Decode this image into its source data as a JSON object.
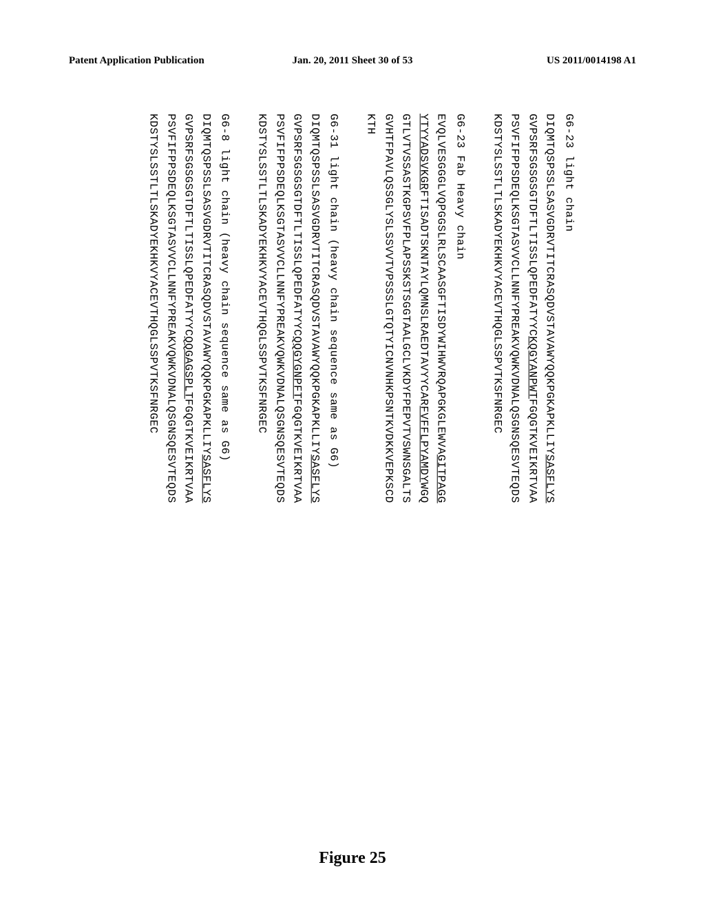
{
  "header": {
    "left": "Patent Application Publication",
    "center": "Jan. 20, 2011  Sheet 30 of 53",
    "right": "US 2011/0014198 A1"
  },
  "content": {
    "blocks": [
      {
        "title": "G6-23 light chain",
        "lines": [
          {
            "pre": "DIQMTQSPSSLSASVGDRVTITCRASQDVSTAVAWYQQKPGKAPKLLIY",
            "u": "SASFLYS",
            "post": ""
          },
          {
            "pre": "GVPSRFSGSGSGTDFTLTISSLQPEDFATYYC",
            "u": "KQGYANPWT",
            "post": "FGQGTKVEIKRTVAA"
          },
          {
            "pre": "PSVFIFPPSDEQLKSGTASVVCLLNNFYPREAKVQWKVDNALQSGNSQESVTEQDS",
            "u": "",
            "post": ""
          },
          {
            "pre": "KDSTYSLSSTLTLSKADYEKHKVYACEVTHQGLSSPVTKSFNRGEC",
            "u": "",
            "post": ""
          }
        ]
      },
      {
        "title": "G6-23 Fab Heavy chain",
        "lines": [
          {
            "pre": "EVQLVESGGGLVQPGGSLRLSCAASGFTISDYWIHWVRQAPGKGLEWVA",
            "u": "GITPAGG",
            "post": ""
          },
          {
            "pre": "",
            "u": "YTYYADSVKGR",
            "post": "FTISADTSKNTAYLQMNSLRAEDTAVYYCAR"
          },
          {
            "pre2": "",
            "u2": "FVFFLPYAMDY",
            "post2": "WGQ"
          },
          {
            "pre": "GTLVTVSSASTKGPSVFPLAPSSKSTSGGTAALGCLVKDYFPEPVTVSWNSGALTS",
            "u": "",
            "post": ""
          },
          {
            "pre": "GVHTFPAVLQSSGLYSLSSVVTVPSSSLGTQTYICNVNHKPSNTKVDKKVEPKSCD",
            "u": "",
            "post": ""
          },
          {
            "pre": "KTH",
            "u": "",
            "post": ""
          }
        ]
      },
      {
        "title": "G6-31 light chain (heavy chain sequence same as G6)",
        "lines": [
          {
            "pre": "DIQMTQSPSSLSASVGDRVTITCRASQDVSTAVAWYQQKPGKAPKLLIY",
            "u": "SASFLYS",
            "post": ""
          },
          {
            "pre": "GVPSRFSGSGSGTDFTLTISSLQPEDFATYYC",
            "u": "QQGYGNPFT",
            "post": "FGQGTKVEIKRTVAA"
          },
          {
            "pre": "PSVFIFPPSDEQLKSGTASVVCLLNNFYPREAKVQWKVDNALQSGNSQESVTEQDS",
            "u": "",
            "post": ""
          },
          {
            "pre": "KDSTYSLSSTLTLSKADYEKHKVYACEVTHQGLSSPVTKSFNRGEC",
            "u": "",
            "post": ""
          }
        ]
      },
      {
        "title": "G6-8 light chain (heavy chain sequence same as G6)",
        "lines": [
          {
            "pre": "DIQMTQSPSSLSASVGDRVTITCRASQDVSTAVAWYQQKPGKAPKLLIY",
            "u": "SASFLYS",
            "post": ""
          },
          {
            "pre": "GVPSRFSGSGSGTDFTLTISSLQPEDFATYYC",
            "u": "QQGAGSPLT",
            "post": "FGQGTKVEIKRTVAA"
          },
          {
            "pre": "PSVFIFPPSDEQLKSGTASVVCLLNNFYPREAKVQWKVDNALQSGNSQESVTEQDS",
            "u": "",
            "post": ""
          },
          {
            "pre": "KDSTYSLSSTLTLSKADYEKHKVYACEVTHQGLSSPVTKSFNRGEC",
            "u": "",
            "post": ""
          }
        ]
      }
    ]
  },
  "figure_label": "Figure 25",
  "styling": {
    "background_color": "#ffffff",
    "text_color": "#000000",
    "header_font": "Times New Roman",
    "sequence_font": "Courier New",
    "header_fontsize": 15,
    "sequence_fontsize": 16,
    "figure_label_fontsize": 24
  }
}
